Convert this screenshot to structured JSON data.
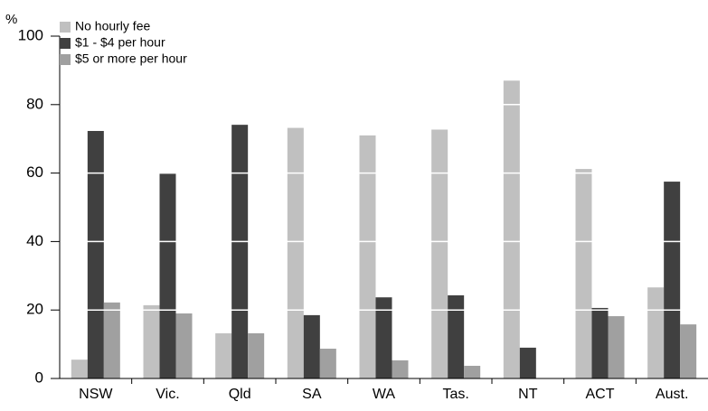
{
  "chart_data": {
    "type": "bar",
    "y_label": "%",
    "categories": [
      "NSW",
      "Vic.",
      "Qld",
      "SA",
      "WA",
      "Tas.",
      "NT",
      "ACT",
      "Aust."
    ],
    "series": [
      {
        "name": "No hourly fee",
        "color": "#c0c0c0",
        "values": [
          5.5,
          21.4,
          13.2,
          73.2,
          71,
          72.7,
          87,
          61.2,
          26.6
        ]
      },
      {
        "name": "$1 - $4 per hour",
        "color": "#404040",
        "values": [
          72.3,
          59.9,
          74.1,
          18.5,
          23.7,
          24.3,
          9,
          20.6,
          57.5
        ]
      },
      {
        "name": "$5 or more per hour",
        "color": "#a0a0a0",
        "values": [
          22.2,
          19,
          13.2,
          8.7,
          5.3,
          3.7,
          null,
          18.2,
          15.8
        ]
      }
    ],
    "ylim": [
      0,
      100
    ],
    "yticks": [
      0,
      20,
      40,
      60,
      80,
      100
    ],
    "grid": true
  }
}
